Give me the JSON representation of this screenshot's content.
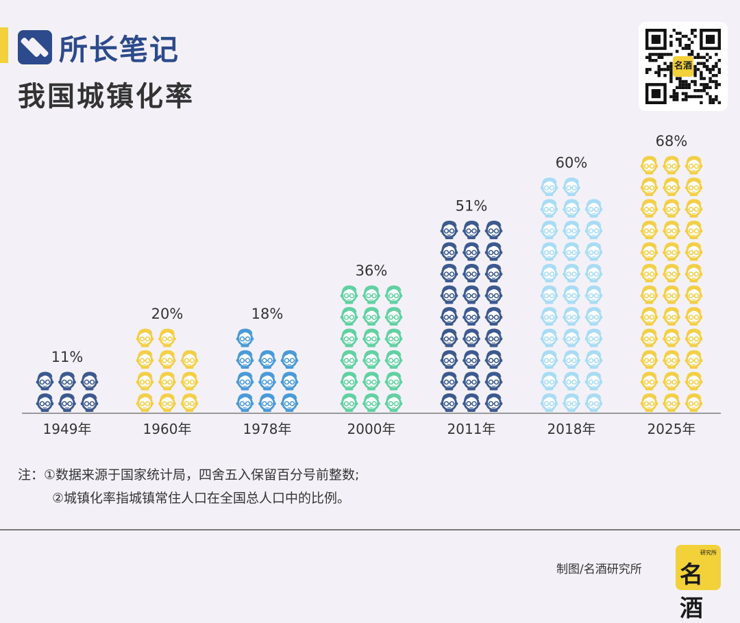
{
  "brand": {
    "name": "所长笔记"
  },
  "page": {
    "title": "我国城镇化率"
  },
  "qr": {
    "logo_text": "名酒"
  },
  "chart_data": {
    "type": "bar",
    "title": "我国城镇化率",
    "categories": [
      "1949年",
      "1960年",
      "1978年",
      "2000年",
      "2011年",
      "2018年",
      "2025年"
    ],
    "values": [
      11,
      20,
      18,
      36,
      51,
      60,
      68
    ],
    "value_labels": [
      "11%",
      "20%",
      "18%",
      "36%",
      "51%",
      "60%",
      "68%"
    ],
    "bar_colors": [
      "#3d5a8f",
      "#f3cf48",
      "#4b9ad8",
      "#62d1a2",
      "#3d5a8f",
      "#a9dcf4",
      "#f3cf48"
    ],
    "icons_per_column": [
      [
        2,
        2,
        2
      ],
      [
        4,
        4,
        3
      ],
      [
        4,
        3,
        3
      ],
      [
        6,
        6,
        6
      ],
      [
        9,
        9,
        9
      ],
      [
        11,
        11,
        10
      ],
      [
        12,
        12,
        12
      ]
    ],
    "icon": "person-face-icon",
    "grid": false,
    "legend": "none"
  },
  "notes": {
    "line1": "注：①数据来源于国家统计局，四舍五入保留百分号前整数;",
    "line2": "②城镇化率指城镇常住人口在全国总人口中的比例。"
  },
  "footer": {
    "credit": "制图/名酒研究所",
    "logo_main": "名酒",
    "logo_small": "研究所"
  }
}
